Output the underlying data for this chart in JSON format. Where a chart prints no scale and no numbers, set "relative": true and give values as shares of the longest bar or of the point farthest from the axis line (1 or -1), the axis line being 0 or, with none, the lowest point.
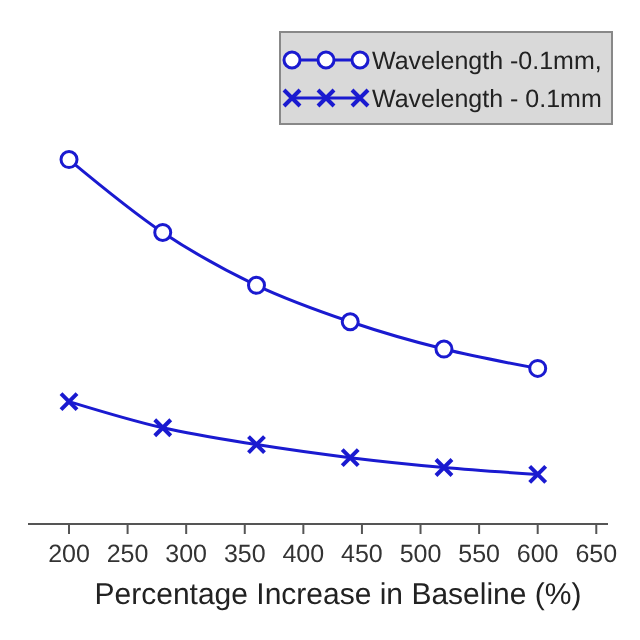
{
  "chart_data": {
    "type": "line",
    "relative": true,
    "xlabel": "Percentage Increase in Baseline (%)",
    "x": [
      200,
      280,
      360,
      440,
      520,
      600
    ],
    "xlim": [
      165,
      660
    ],
    "xticks": [
      200,
      250,
      300,
      350,
      400,
      450,
      500,
      550,
      600,
      650
    ],
    "legend": "top right",
    "series": [
      {
        "name": "Wavelength -0.1mm,",
        "color": "#1a1ad0",
        "marker": "circle",
        "values": [
          1,
          0.8,
          0.655,
          0.555,
          0.48,
          0.427
        ]
      },
      {
        "name": "Wavelength - 0.1mm",
        "color": "#1a1ad0",
        "marker": "cross",
        "values": [
          0.336,
          0.264,
          0.218,
          0.182,
          0.155,
          0.136
        ]
      }
    ]
  }
}
